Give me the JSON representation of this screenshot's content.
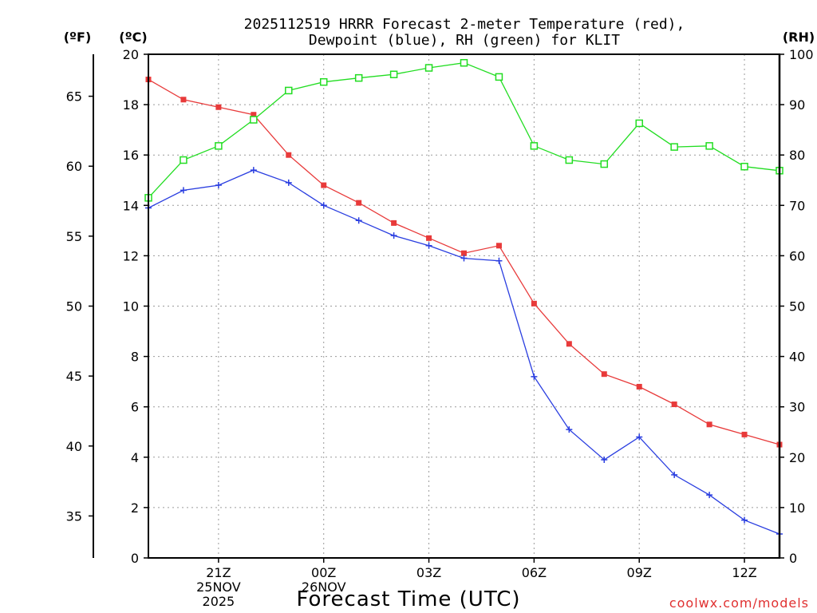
{
  "chart_data": {
    "type": "line",
    "title_line1": "2025112519 HRRR Forecast 2-meter Temperature (red),",
    "title_line2": "Dewpoint (blue), RH (green) for KLIT",
    "xlabel": "Forecast Time (UTC)",
    "credit": "coolwx.com/models",
    "units": {
      "left_f": "(ºF)",
      "left_c": "(ºC)",
      "right": "(RH)"
    },
    "x_hours": [
      19,
      20,
      21,
      22,
      23,
      24,
      25,
      26,
      27,
      28,
      29,
      30,
      31,
      32,
      33,
      34,
      35,
      36,
      37
    ],
    "xlim": [
      19,
      37
    ],
    "x_ticks": [
      {
        "hour": 21,
        "lines": [
          "21Z",
          "25NOV",
          "2025"
        ]
      },
      {
        "hour": 24,
        "lines": [
          "00Z",
          "26NOV"
        ]
      },
      {
        "hour": 27,
        "lines": [
          "03Z"
        ]
      },
      {
        "hour": 30,
        "lines": [
          "06Z"
        ]
      },
      {
        "hour": 33,
        "lines": [
          "09Z"
        ]
      },
      {
        "hour": 36,
        "lines": [
          "12Z"
        ]
      }
    ],
    "ylim_c": [
      0,
      20
    ],
    "y_ticks_c": [
      0,
      2,
      4,
      6,
      8,
      10,
      12,
      14,
      16,
      18,
      20
    ],
    "y_ticks_f": [
      35,
      40,
      45,
      50,
      55,
      60,
      65
    ],
    "ylim_rh": [
      0,
      100
    ],
    "y_ticks_rh": [
      0,
      10,
      20,
      30,
      40,
      50,
      60,
      70,
      80,
      90,
      100
    ],
    "series": [
      {
        "name": "Temperature",
        "axis": "c",
        "color": "#e83a3a",
        "marker": "filled-square",
        "values": [
          19.0,
          18.2,
          17.9,
          17.6,
          16.0,
          14.8,
          14.1,
          13.3,
          12.7,
          12.1,
          12.4,
          10.1,
          8.5,
          7.3,
          6.8,
          6.1,
          5.3,
          4.9,
          4.5
        ]
      },
      {
        "name": "Dewpoint",
        "axis": "c",
        "color": "#2a3ee0",
        "marker": "plus",
        "values": [
          13.9,
          14.6,
          14.8,
          15.4,
          14.9,
          14.0,
          13.4,
          12.8,
          12.4,
          11.9,
          11.8,
          7.2,
          5.1,
          3.9,
          4.8,
          3.3,
          2.5,
          1.5,
          0.95
        ]
      },
      {
        "name": "RH",
        "axis": "rh",
        "color": "#22dd22",
        "marker": "open-square",
        "values": [
          71.5,
          79.0,
          81.8,
          87.0,
          92.8,
          94.5,
          95.3,
          96.0,
          97.3,
          98.3,
          95.5,
          81.8,
          79.0,
          78.2,
          86.3,
          81.6,
          81.8,
          77.7,
          76.9
        ]
      }
    ]
  }
}
